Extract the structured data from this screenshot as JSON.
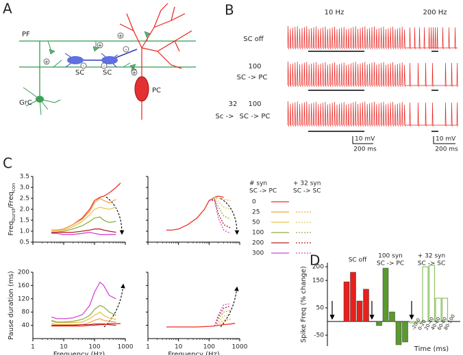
{
  "panel_a": {
    "label": "A",
    "texts": {
      "pf": "PF",
      "sc1": "SC",
      "sc2": "SC",
      "pc": "PC",
      "grc": "GrC"
    },
    "signs": [
      "+",
      "+",
      "+",
      "+",
      "-",
      "-",
      "-"
    ]
  },
  "panel_b": {
    "label": "B",
    "columns": [
      "10 Hz",
      "200 Hz"
    ],
    "rows": [
      [
        "SC off"
      ],
      [
        "100",
        "SC -> PC"
      ],
      [
        "32",
        "100",
        "Sc ->",
        "SC -> PC"
      ]
    ],
    "scale_bars": [
      [
        "10 mV",
        "200 ms"
      ],
      [
        "10 mV",
        "200 ms"
      ]
    ]
  },
  "panel_c": {
    "label": "C",
    "legend_solid_title": [
      "# syn",
      "SC -> PC"
    ],
    "legend_dashed_title": [
      "+ 32 syn",
      "SC -> SC"
    ]
  },
  "panel_d": {
    "label": "D",
    "group_labels": [
      [
        "SC off"
      ],
      [
        "100 syn",
        "SC -> PC"
      ],
      [
        "+ 32 syn",
        "SC -> SC"
      ]
    ]
  },
  "chart_data": [
    {
      "type": "line",
      "xscale": "log",
      "xlim": [
        1,
        1000
      ],
      "xticks": [
        1,
        10,
        100,
        1000
      ],
      "show_xtick_labels": false,
      "ylim": [
        0.5,
        3.5
      ],
      "yticks": [
        0.5,
        {
          "value": 1,
          "label": "1.0"
        },
        1.5,
        {
          "value": 2,
          "label": "2.0"
        },
        2.5,
        {
          "value": 3,
          "label": "3.0"
        },
        3.5
      ],
      "ylabel_parts": [
        {
          "text": "Freq"
        },
        {
          "text": "burst",
          "sub": true
        },
        {
          "text": "/Freq"
        },
        {
          "text": "con",
          "sub": true
        }
      ],
      "x": [
        4,
        6,
        10,
        20,
        40,
        70,
        100,
        150,
        200,
        300,
        500,
        700
      ],
      "series": [
        {
          "name": "0",
          "color": "#ee2a24",
          "values": [
            1.05,
            1.05,
            1.1,
            1.3,
            1.6,
            2.0,
            2.4,
            2.55,
            2.6,
            2.75,
            3.0,
            3.2
          ]
        },
        {
          "name": "25",
          "color": "#f3a23a",
          "values": [
            1.05,
            1.05,
            1.1,
            1.3,
            1.55,
            1.9,
            2.3,
            2.5,
            2.4,
            2.3,
            2.45,
            null
          ]
        },
        {
          "name": "50",
          "color": "#e9c44a",
          "values": [
            1.0,
            1.0,
            1.05,
            1.2,
            1.45,
            1.75,
            2.0,
            2.1,
            2.05,
            2.0,
            2.1,
            null
          ]
        },
        {
          "name": "100",
          "color": "#8fae45",
          "values": [
            0.95,
            0.95,
            1.0,
            1.1,
            1.25,
            1.45,
            1.6,
            1.65,
            1.5,
            1.4,
            1.45,
            null
          ]
        },
        {
          "name": "200",
          "color": "#b81e24",
          "values": [
            0.95,
            0.95,
            0.95,
            0.95,
            1.0,
            1.05,
            1.1,
            1.1,
            1.05,
            1.0,
            0.95,
            null
          ]
        },
        {
          "name": "300",
          "color": "#d246d2",
          "values": [
            0.9,
            0.9,
            0.85,
            0.85,
            0.9,
            0.95,
            0.9,
            0.85,
            0.85,
            0.85,
            0.85,
            null
          ]
        }
      ]
    },
    {
      "type": "line",
      "xscale": "log",
      "xlim": [
        1,
        1000
      ],
      "xticks": [
        1,
        10,
        100,
        1000
      ],
      "show_xtick_labels": false,
      "show_ytick_labels": false,
      "ylim": [
        0.5,
        3.5
      ],
      "yticks": [
        0.5,
        1,
        1.5,
        2,
        2.5,
        3,
        3.5
      ],
      "x": [
        4,
        6,
        10,
        20,
        40,
        70,
        100,
        150,
        200,
        300,
        500,
        700
      ],
      "series": [
        {
          "color": "#ee2a24",
          "values": [
            1.05,
            1.05,
            1.1,
            1.3,
            1.6,
            2.0,
            2.4,
            2.55,
            2.6,
            2.55,
            null,
            null
          ]
        },
        {
          "color": "#f3a23a",
          "dashed": true,
          "values": [
            null,
            null,
            null,
            null,
            null,
            null,
            2.4,
            2.55,
            2.5,
            2.45,
            2.4,
            null
          ]
        },
        {
          "color": "#e9c44a",
          "dashed": true,
          "values": [
            null,
            null,
            null,
            null,
            null,
            null,
            2.4,
            2.55,
            2.35,
            2.1,
            2.0,
            null
          ]
        },
        {
          "color": "#8fae45",
          "dashed": true,
          "values": [
            null,
            null,
            null,
            null,
            null,
            null,
            2.4,
            2.5,
            2.1,
            1.7,
            1.55,
            null
          ]
        },
        {
          "color": "#b81e24",
          "dashed": true,
          "values": [
            null,
            null,
            null,
            null,
            null,
            null,
            2.4,
            2.45,
            1.8,
            1.3,
            1.15,
            null
          ]
        },
        {
          "color": "#d246d2",
          "dashed": true,
          "values": [
            null,
            null,
            null,
            null,
            null,
            null,
            2.4,
            2.4,
            1.6,
            1.05,
            0.9,
            null
          ]
        }
      ]
    },
    {
      "type": "line",
      "xscale": "log",
      "xlim": [
        1,
        1000
      ],
      "xticks": [
        1,
        10,
        100,
        1000
      ],
      "ylim": [
        0,
        200
      ],
      "yticks": [
        40,
        80,
        120,
        160,
        200
      ],
      "ylabel": "Pause duration (ms)",
      "xlabel": "Frequency (Hz)",
      "x": [
        4,
        6,
        10,
        20,
        40,
        70,
        100,
        150,
        200,
        300,
        500,
        700
      ],
      "series": [
        {
          "color": "#ee2a24",
          "values": [
            38,
            38,
            38,
            38,
            38,
            40,
            40,
            42,
            42,
            45,
            45,
            45
          ]
        },
        {
          "color": "#f3a23a",
          "values": [
            45,
            42,
            42,
            42,
            42,
            48,
            55,
            60,
            55,
            52,
            50,
            null
          ]
        },
        {
          "color": "#e9c44a",
          "values": [
            52,
            48,
            48,
            48,
            50,
            60,
            70,
            80,
            70,
            62,
            58,
            null
          ]
        },
        {
          "color": "#8fae45",
          "values": [
            55,
            50,
            50,
            52,
            58,
            70,
            88,
            100,
            95,
            80,
            70,
            null
          ]
        },
        {
          "color": "#b81e24",
          "values": [
            40,
            40,
            40,
            40,
            42,
            42,
            44,
            44,
            44,
            42,
            40,
            null
          ]
        },
        {
          "color": "#d246d2",
          "values": [
            65,
            60,
            60,
            62,
            72,
            100,
            140,
            170,
            160,
            130,
            120,
            null
          ]
        }
      ]
    },
    {
      "type": "line",
      "xscale": "log",
      "xlim": [
        1,
        1000
      ],
      "xticks": [
        1,
        10,
        100,
        1000
      ],
      "show_ytick_labels": false,
      "ylim": [
        0,
        200
      ],
      "yticks": [
        40,
        80,
        120,
        160,
        200
      ],
      "xlabel": "Frequency (Hz)",
      "x": [
        4,
        6,
        10,
        20,
        40,
        70,
        100,
        150,
        200,
        300,
        500,
        700
      ],
      "series": [
        {
          "color": "#ee2a24",
          "values": [
            35,
            35,
            35,
            35,
            35,
            36,
            37,
            38,
            40,
            42,
            44,
            46
          ]
        },
        {
          "color": "#f3a23a",
          "dashed": true,
          "values": [
            null,
            null,
            null,
            null,
            null,
            null,
            null,
            38,
            45,
            55,
            58,
            null
          ]
        },
        {
          "color": "#e9c44a",
          "dashed": true,
          "values": [
            null,
            null,
            null,
            null,
            null,
            null,
            null,
            38,
            50,
            68,
            72,
            null
          ]
        },
        {
          "color": "#8fae45",
          "dashed": true,
          "values": [
            null,
            null,
            null,
            null,
            null,
            null,
            null,
            38,
            58,
            80,
            85,
            null
          ]
        },
        {
          "color": "#b81e24",
          "dashed": true,
          "values": [
            null,
            null,
            null,
            null,
            null,
            null,
            null,
            38,
            65,
            92,
            98,
            null
          ]
        },
        {
          "color": "#d246d2",
          "dashed": true,
          "values": [
            null,
            null,
            null,
            null,
            null,
            null,
            null,
            38,
            72,
            102,
            105,
            null
          ]
        }
      ]
    },
    {
      "type": "bar",
      "ylabel": "Spike Freq (% change)",
      "xlabel": "Time (ms)",
      "ylim": [
        -90,
        215
      ],
      "yticks": [
        200,
        150,
        50,
        -50
      ],
      "categories": [
        "-20-0",
        "0-20",
        "20-40",
        "40-60",
        "60-80",
        "80-100"
      ],
      "category_label_group": 2,
      "series": [
        {
          "color": "#e8201c",
          "values": [
            0,
            0,
            145,
            180,
            75,
            118
          ]
        },
        {
          "color": "#5a9a30",
          "values": [
            0,
            -15,
            195,
            35,
            -85,
            -75
          ]
        },
        {
          "color": "#8bc060",
          "hollow": true,
          "values": [
            -5,
            -5,
            200,
            205,
            85,
            85
          ]
        }
      ]
    }
  ]
}
